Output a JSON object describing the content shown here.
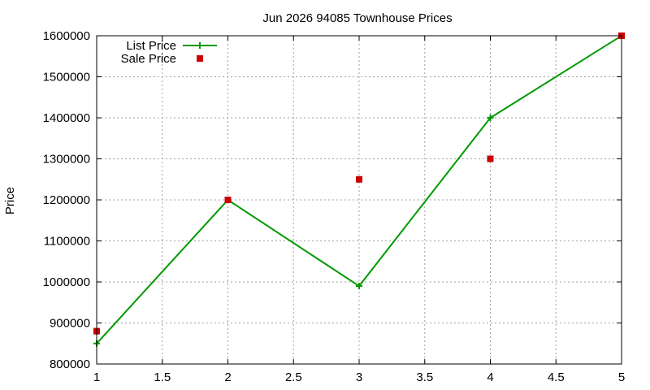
{
  "chart_data": {
    "type": "line",
    "title": "Jun 2026 94085 Townhouse Prices",
    "xlabel": "",
    "ylabel": "Price",
    "xlim": [
      1,
      5
    ],
    "ylim": [
      800000,
      1600000
    ],
    "x_ticks": [
      1,
      1.5,
      2,
      2.5,
      3,
      3.5,
      4,
      4.5,
      5
    ],
    "x_tick_labels": [
      "1",
      "1.5",
      "2",
      "2.5",
      "3",
      "3.5",
      "4",
      "4.5",
      "5"
    ],
    "y_ticks": [
      800000,
      900000,
      1000000,
      1100000,
      1200000,
      1300000,
      1400000,
      1500000,
      1600000
    ],
    "y_tick_labels": [
      "800000",
      "900000",
      "1000000",
      "1100000",
      "1200000",
      "1300000",
      "1400000",
      "1500000",
      "1600000"
    ],
    "grid": true,
    "legend_position": "top-left",
    "series": [
      {
        "name": "List Price",
        "style": "line-with-plus-markers",
        "color": "#009900",
        "x": [
          1,
          2,
          3,
          4,
          5
        ],
        "y": [
          850000,
          1200000,
          990000,
          1400000,
          1600000
        ]
      },
      {
        "name": "Sale Price",
        "style": "square-markers",
        "color": "#cc0000",
        "x": [
          1,
          2,
          3,
          4,
          5
        ],
        "y": [
          880000,
          1200000,
          1250000,
          1300000,
          1600000
        ]
      }
    ]
  }
}
